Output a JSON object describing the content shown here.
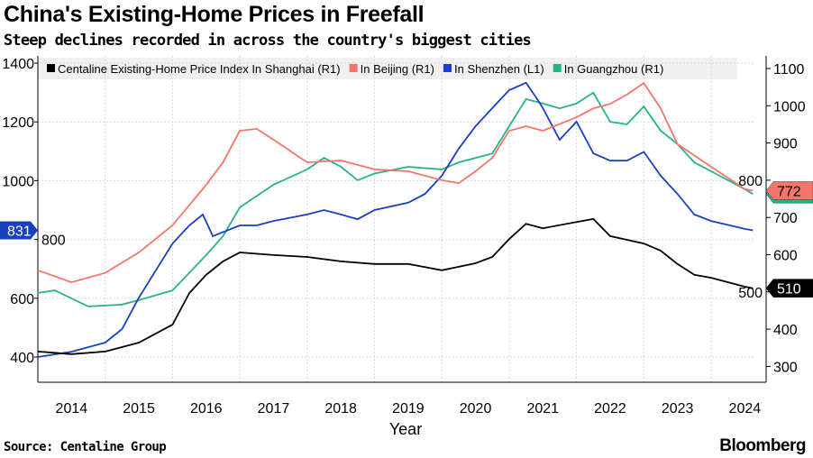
{
  "title": "China's Existing-Home Prices in Freefall",
  "subtitle": "Steep declines recorded in across the country's biggest cities",
  "source": "Source: Centaline Group",
  "brand": "Bloomberg",
  "chart_data": {
    "type": "line",
    "xlabel": "Year",
    "xticks": [
      "2014",
      "2015",
      "2016",
      "2017",
      "2018",
      "2019",
      "2020",
      "2021",
      "2022",
      "2023",
      "2024"
    ],
    "xlim": [
      2014.0,
      2024.65
    ],
    "left_axis": {
      "ylim": [
        330,
        1430
      ],
      "ticks": [
        400,
        600,
        800,
        1000,
        1200,
        1400
      ]
    },
    "right_axis": {
      "ylim": [
        270,
        1120
      ],
      "ticks": [
        300,
        400,
        500,
        600,
        700,
        800,
        900,
        1000,
        1100
      ]
    },
    "grid": true,
    "legend": "top",
    "series": [
      {
        "name": "Centaline Existing-Home Price Index In Shanghai (R1)",
        "axis": "right",
        "color": "#000000",
        "last_label": "510",
        "x": [
          2014,
          2014.5,
          2015,
          2015.5,
          2016,
          2016.25,
          2016.5,
          2016.75,
          2017,
          2017.5,
          2018,
          2018.5,
          2019,
          2019.5,
          2020,
          2020.5,
          2020.75,
          2021,
          2021.25,
          2021.5,
          2022,
          2022.25,
          2022.5,
          2023,
          2023.25,
          2023.5,
          2023.75,
          2024,
          2024.5,
          2024.62
        ],
        "y": [
          340,
          333,
          340,
          364,
          412,
          497,
          546,
          582,
          606,
          599,
          594,
          582,
          575,
          575,
          558,
          577,
          594,
          642,
          683,
          671,
          688,
          696,
          650,
          630,
          611,
          575,
          546,
          538,
          514,
          510
        ]
      },
      {
        "name": "In Beijing (R1)",
        "axis": "right",
        "color": "#f4766a",
        "last_label": "772",
        "x": [
          2014,
          2014.5,
          2015,
          2015.5,
          2016,
          2016.5,
          2016.75,
          2017,
          2017.25,
          2017.5,
          2018,
          2018.5,
          2019,
          2019.5,
          2020,
          2020.25,
          2020.5,
          2020.75,
          2021,
          2021.25,
          2021.5,
          2022,
          2022.25,
          2022.5,
          2022.75,
          2023,
          2023.25,
          2023.5,
          2024,
          2024.5,
          2024.62
        ],
        "y": [
          558,
          526,
          551,
          606,
          679,
          788,
          848,
          933,
          938,
          909,
          848,
          853,
          829,
          824,
          800,
          792,
          824,
          860,
          933,
          945,
          933,
          969,
          993,
          1005,
          1030,
          1061,
          993,
          897,
          836,
          776,
          772
        ]
      },
      {
        "name": "In Shenzhen (L1)",
        "axis": "left",
        "color": "#1a3fbf",
        "last_label": "831",
        "x": [
          2014,
          2014.5,
          2015,
          2015.25,
          2015.5,
          2015.75,
          2016,
          2016.25,
          2016.45,
          2016.6,
          2017,
          2017.25,
          2017.5,
          2018,
          2018.25,
          2018.5,
          2018.75,
          2019,
          2019.5,
          2019.75,
          2020,
          2020.25,
          2020.5,
          2020.75,
          2021,
          2021.25,
          2021.4,
          2021.5,
          2021.75,
          2022,
          2022.25,
          2022.5,
          2022.75,
          2023,
          2023.25,
          2023.5,
          2023.75,
          2024,
          2024.5,
          2024.62
        ],
        "y": [
          400,
          418,
          449,
          495,
          602,
          694,
          786,
          848,
          885,
          811,
          848,
          848,
          863,
          885,
          900,
          885,
          869,
          900,
          925,
          955,
          1017,
          1109,
          1185,
          1247,
          1308,
          1333,
          1283,
          1247,
          1139,
          1201,
          1093,
          1068,
          1068,
          1098,
          1017,
          955,
          885,
          863,
          836,
          831
        ]
      },
      {
        "name": "In Guangzhou (R1)",
        "axis": "right",
        "color": "#26b38a",
        "last_label": "",
        "x": [
          2014,
          2014.25,
          2014.75,
          2015.25,
          2015.5,
          2016,
          2016.5,
          2016.75,
          2017,
          2017.5,
          2018,
          2018.25,
          2018.5,
          2018.75,
          2019,
          2019.5,
          2020,
          2020.25,
          2020.75,
          2021,
          2021.25,
          2021.5,
          2021.75,
          2022,
          2022.25,
          2022.5,
          2022.75,
          2023,
          2023.25,
          2023.5,
          2023.75,
          2024,
          2024.5,
          2024.62
        ],
        "y": [
          497,
          504,
          461,
          466,
          478,
          504,
          599,
          650,
          727,
          788,
          829,
          860,
          836,
          800,
          818,
          836,
          829,
          848,
          872,
          945,
          1018,
          1006,
          993,
          1006,
          1035,
          957,
          950,
          998,
          933,
          897,
          848,
          824,
          776,
          763
        ]
      }
    ]
  }
}
